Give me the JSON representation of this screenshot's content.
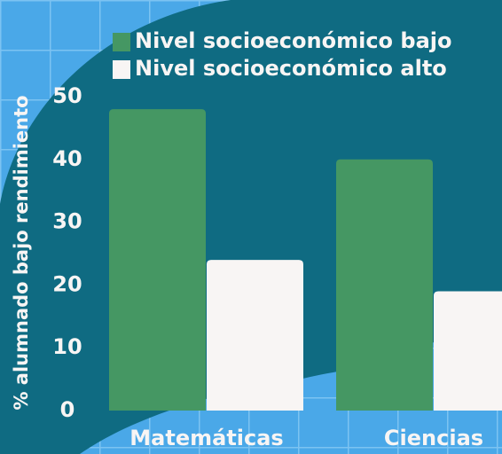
{
  "chart_data": {
    "type": "bar",
    "categories": [
      "Matemáticas",
      "Ciencias"
    ],
    "y_label": "% alumnado bajo rendimiento",
    "series": [
      {
        "name": "Nivel socioeconómico bajo",
        "color": "#459763",
        "values": [
          48,
          40
        ]
      },
      {
        "name": "Nivel socioeconómico alto",
        "color": "#f8f5f4",
        "values": [
          24,
          19
        ]
      }
    ],
    "ylim": [
      0,
      50
    ],
    "yticks": [
      0,
      10,
      20,
      30,
      40,
      50
    ],
    "grid": false
  }
}
